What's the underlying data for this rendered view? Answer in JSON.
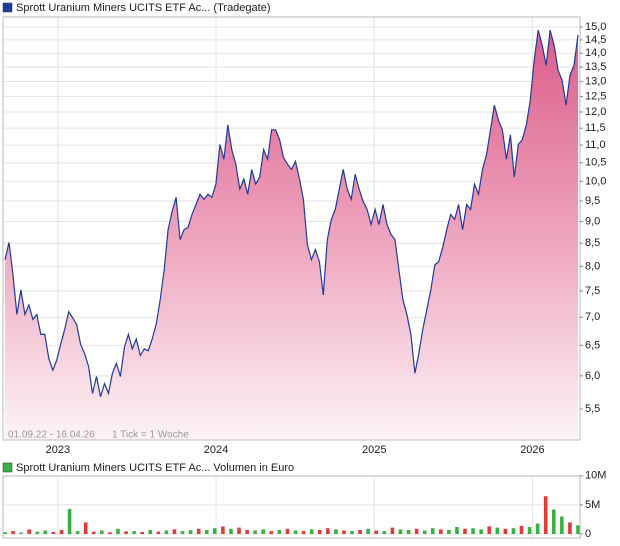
{
  "chart_data": [
    {
      "type": "area",
      "log_scale": true,
      "grid": true,
      "footnote": "01.09.22 - 16.04.26",
      "tick_note": "1 Tick = 1 Woche",
      "xlim": [
        2022.666,
        2026.288
      ],
      "xticks": [
        2023,
        2024,
        2025,
        2026
      ],
      "ylim": [
        5.07,
        15.4
      ],
      "yticks": [
        {
          "value": 5.5,
          "label": "5,5"
        },
        {
          "value": 6,
          "label": "6,0"
        },
        {
          "value": 6.5,
          "label": "6,5"
        },
        {
          "value": 7,
          "label": "7,0"
        },
        {
          "value": 7.5,
          "label": "7,5"
        },
        {
          "value": 8,
          "label": "8,0"
        },
        {
          "value": 8.5,
          "label": "8,5"
        },
        {
          "value": 9,
          "label": "9,0"
        },
        {
          "value": 9.5,
          "label": "9,5"
        },
        {
          "value": 10,
          "label": "10,0"
        },
        {
          "value": 10.5,
          "label": "10,5"
        },
        {
          "value": 11,
          "label": "11,0"
        },
        {
          "value": 11.5,
          "label": "11,5"
        },
        {
          "value": 12,
          "label": "12,0"
        },
        {
          "value": 12.5,
          "label": "12,5"
        },
        {
          "value": 13,
          "label": "13,0"
        },
        {
          "value": 13.5,
          "label": "13,5"
        },
        {
          "value": 14,
          "label": "14,0"
        },
        {
          "value": 14.5,
          "label": "14,5"
        },
        {
          "value": 15,
          "label": "15,0"
        }
      ],
      "series": [
        {
          "name": "Sprott Uranium Miners UCITS ETF Ac... (Tradegate)",
          "color": "#1f3c9c",
          "values": [
            8.14,
            8.52,
            7.82,
            7.05,
            7.52,
            7.05,
            7.23,
            6.96,
            7.05,
            6.69,
            6.69,
            6.28,
            6.09,
            6.25,
            6.52,
            6.78,
            7.1,
            6.99,
            6.87,
            6.52,
            6.36,
            6.15,
            5.73,
            5.99,
            5.68,
            5.88,
            5.73,
            6.04,
            6.2,
            5.99,
            6.47,
            6.69,
            6.44,
            6.61,
            6.33,
            6.44,
            6.41,
            6.61,
            6.87,
            7.33,
            7.93,
            8.81,
            9.24,
            9.59,
            8.58,
            8.81,
            8.86,
            9.17,
            9.41,
            9.67,
            9.54,
            9.67,
            9.59,
            9.93,
            11.02,
            10.6,
            11.6,
            10.87,
            10.46,
            9.8,
            10.06,
            9.67,
            10.32,
            9.93,
            10.11,
            10.87,
            10.6,
            11.45,
            11.45,
            11.16,
            10.65,
            10.46,
            10.32,
            10.54,
            10.06,
            9.54,
            8.47,
            8.14,
            8.36,
            8.1,
            7.42,
            8.58,
            9.05,
            9.29,
            9.8,
            10.32,
            9.8,
            9.54,
            10.19,
            9.8,
            9.49,
            9.29,
            8.93,
            9.29,
            8.93,
            9.41,
            8.93,
            8.7,
            8.58,
            7.93,
            7.33,
            7.05,
            6.69,
            6.04,
            6.36,
            6.78,
            7.14,
            7.52,
            8.03,
            8.1,
            8.41,
            8.81,
            9.17,
            9.05,
            9.41,
            8.81,
            9.41,
            9.29,
            9.93,
            9.67,
            10.32,
            10.73,
            11.45,
            12.22,
            11.75,
            11.45,
            10.6,
            11.3,
            10.11,
            11.02,
            11.16,
            11.6,
            12.38,
            13.75,
            14.88,
            14.3,
            13.57,
            14.88,
            14.3,
            13.39,
            13.04,
            12.22,
            13.22,
            13.57,
            14.69
          ]
        }
      ]
    },
    {
      "type": "bar",
      "grid": true,
      "xlim": [
        2022.666,
        2026.288
      ],
      "xticks": [
        2023,
        2024,
        2025,
        2026
      ],
      "ylim": [
        0,
        11000000
      ],
      "yticks": [
        0,
        {
          "value": 5000000,
          "label": "5M"
        },
        {
          "value": 10000000,
          "label": "10M"
        }
      ],
      "series": [
        {
          "name": "Sprott Uranium Miners UCITS ETF Ac... Volumen in Euro",
          "color": "#3cb043",
          "values": [
            300000,
            500000,
            250000,
            800000,
            400000,
            600000,
            350000,
            700000,
            4300000,
            500000,
            2000000,
            400000,
            600000,
            300000,
            900000,
            450000,
            500000,
            350000,
            700000,
            400000,
            600000,
            800000,
            500000,
            650000,
            900000,
            700000,
            1000000,
            1300000,
            900000,
            1100000,
            700000,
            600000,
            800000,
            500000,
            700000,
            900000,
            600000,
            500000,
            800000,
            700000,
            1000000,
            800000,
            600000,
            500000,
            700000,
            900000,
            600000,
            500000,
            1100000,
            800000,
            700000,
            900000,
            600000,
            1000000,
            800000,
            700000,
            1200000,
            900000,
            1000000,
            800000,
            1300000,
            1100000,
            900000,
            1000000,
            1400000,
            1200000,
            1800000,
            6500000,
            4200000,
            3000000,
            2000000,
            1500000
          ],
          "colors": [
            "#3cb043",
            "#e03c3c",
            "#3cb043",
            "#e03c3c",
            "#3cb043",
            "#3cb043",
            "#e03c3c",
            "#e03c3c",
            "#3cb043",
            "#3cb043",
            "#e03c3c",
            "#e03c3c",
            "#3cb043",
            "#e03c3c",
            "#3cb043",
            "#e03c3c",
            "#3cb043",
            "#e03c3c",
            "#3cb043",
            "#e03c3c",
            "#3cb043",
            "#e03c3c",
            "#3cb043",
            "#3cb043",
            "#e03c3c",
            "#3cb043",
            "#3cb043",
            "#e03c3c",
            "#3cb043",
            "#e03c3c",
            "#e03c3c",
            "#3cb043",
            "#3cb043",
            "#e03c3c",
            "#3cb043",
            "#e03c3c",
            "#3cb043",
            "#e03c3c",
            "#3cb043",
            "#e03c3c",
            "#e03c3c",
            "#3cb043",
            "#e03c3c",
            "#3cb043",
            "#e03c3c",
            "#3cb043",
            "#e03c3c",
            "#3cb043",
            "#e03c3c",
            "#3cb043",
            "#3cb043",
            "#e03c3c",
            "#3cb043",
            "#3cb043",
            "#e03c3c",
            "#3cb043",
            "#3cb043",
            "#e03c3c",
            "#3cb043",
            "#3cb043",
            "#e03c3c",
            "#3cb043",
            "#e03c3c",
            "#3cb043",
            "#e03c3c",
            "#3cb043",
            "#3cb043",
            "#e03c3c",
            "#3cb043",
            "#3cb043",
            "#e03c3c",
            "#3cb043"
          ]
        }
      ]
    }
  ]
}
